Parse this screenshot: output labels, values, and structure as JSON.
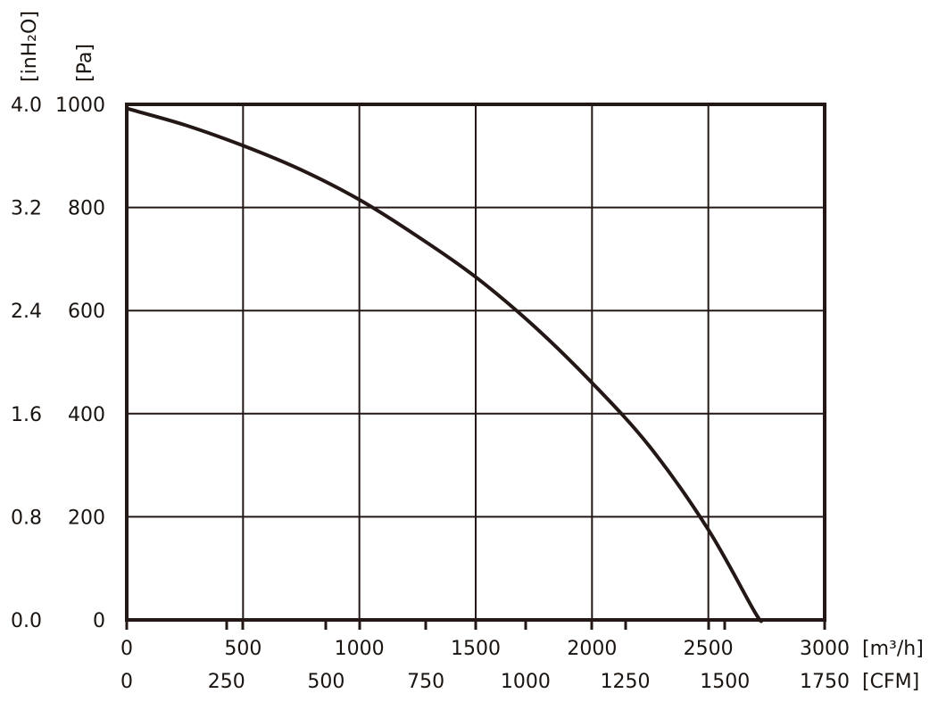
{
  "chart_data": {
    "type": "line",
    "x_primary": {
      "unit": "[m³/h]",
      "range": [
        0,
        3000
      ],
      "ticks": [
        "0",
        "500",
        "1000",
        "1500",
        "2000",
        "2500",
        "3000"
      ]
    },
    "x_secondary": {
      "unit": "[CFM]",
      "range": [
        0,
        1750
      ],
      "ticks": [
        "0",
        "250",
        "500",
        "750",
        "1000",
        "1250",
        "1500",
        "1750"
      ]
    },
    "y_primary": {
      "unit": "[Pa]",
      "range": [
        0,
        1000
      ],
      "ticks": [
        "0",
        "200",
        "400",
        "600",
        "800",
        "1000"
      ]
    },
    "y_secondary": {
      "unit": "[inH₂O]",
      "range": [
        0,
        4.0
      ],
      "ticks": [
        "0.0",
        "0.8",
        "1.6",
        "2.4",
        "3.2",
        "4.0"
      ]
    },
    "grid": true,
    "series": [
      {
        "color": "#231815",
        "x": [
          0,
          250,
          500,
          750,
          1000,
          1250,
          1500,
          1750,
          2000,
          2250,
          2500,
          2700,
          2730
        ],
        "y": [
          992,
          960,
          920,
          873,
          815,
          744,
          665,
          570,
          460,
          335,
          175,
          15,
          0
        ]
      }
    ]
  }
}
